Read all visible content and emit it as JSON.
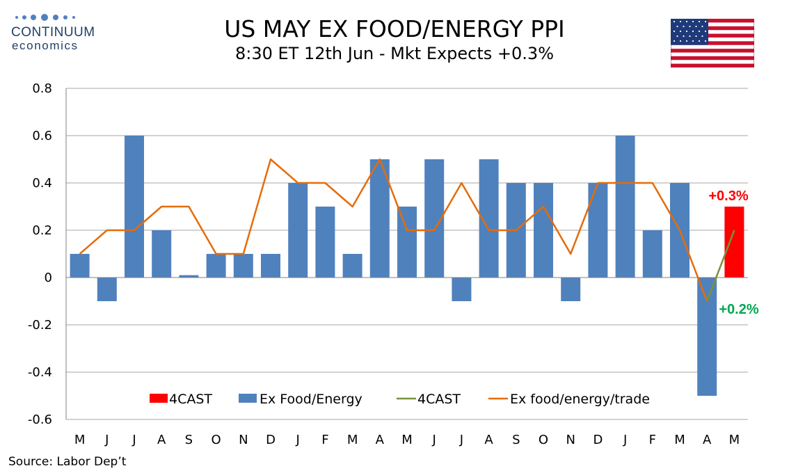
{
  "logo": {
    "name": "CONTINUUM",
    "sub": "economics"
  },
  "header": {
    "title": "US MAY EX FOOD/ENERGY PPI",
    "subtitle": "8:30 ET 12th Jun - Mkt Expects +0.3%"
  },
  "source": "Source: Labor Dep’t",
  "colors": {
    "bar": "#4f81bd",
    "forecast_bar": "#ff0000",
    "line": "#e46c0a",
    "forecast_line": "#77933c",
    "grid": "#a6a6a6"
  },
  "chart_data": {
    "type": "bar",
    "categories": [
      "M",
      "J",
      "J",
      "A",
      "S",
      "O",
      "N",
      "D",
      "J",
      "F",
      "M",
      "A",
      "M",
      "J",
      "J",
      "A",
      "S",
      "O",
      "N",
      "D",
      "J",
      "F",
      "M",
      "A",
      "M"
    ],
    "ylim": [
      -0.6,
      0.8
    ],
    "yticks": [
      "0.8",
      "0.6",
      "0.4",
      "0.2",
      "0",
      "-0.2",
      "-0.4",
      "-0.6"
    ],
    "ytick_values": [
      0.8,
      0.6,
      0.4,
      0.2,
      0,
      -0.2,
      -0.4,
      -0.6
    ],
    "grid": true,
    "legend_placement": "bottom",
    "series": [
      {
        "name": "4CAST",
        "kind": "bar",
        "values": [
          null,
          null,
          null,
          null,
          null,
          null,
          null,
          null,
          null,
          null,
          null,
          null,
          null,
          null,
          null,
          null,
          null,
          null,
          null,
          null,
          null,
          null,
          null,
          null,
          0.3
        ]
      },
      {
        "name": "Ex Food/Energy",
        "kind": "bar",
        "values": [
          0.1,
          -0.1,
          0.6,
          0.2,
          0.01,
          0.1,
          0.1,
          0.1,
          0.4,
          0.3,
          0.1,
          0.5,
          0.3,
          0.5,
          -0.1,
          0.5,
          0.4,
          0.4,
          -0.1,
          0.4,
          0.6,
          0.2,
          0.4,
          -0.5,
          null
        ]
      },
      {
        "name": "4CAST",
        "kind": "line",
        "values": [
          null,
          null,
          null,
          null,
          null,
          null,
          null,
          null,
          null,
          null,
          null,
          null,
          null,
          null,
          null,
          null,
          null,
          null,
          null,
          null,
          null,
          null,
          null,
          -0.1,
          0.2
        ]
      },
      {
        "name": "Ex food/energy/trade",
        "kind": "line",
        "values": [
          0.1,
          0.2,
          0.2,
          0.3,
          0.3,
          0.1,
          0.1,
          0.5,
          0.4,
          0.4,
          0.3,
          0.5,
          0.2,
          0.2,
          0.4,
          0.2,
          0.2,
          0.3,
          0.1,
          0.4,
          0.4,
          0.4,
          0.2,
          -0.1,
          null
        ]
      }
    ],
    "annotations": [
      {
        "text": "+0.3%",
        "color": "#ff0000"
      },
      {
        "text": "+0.2%",
        "color": "#00a651"
      }
    ]
  }
}
